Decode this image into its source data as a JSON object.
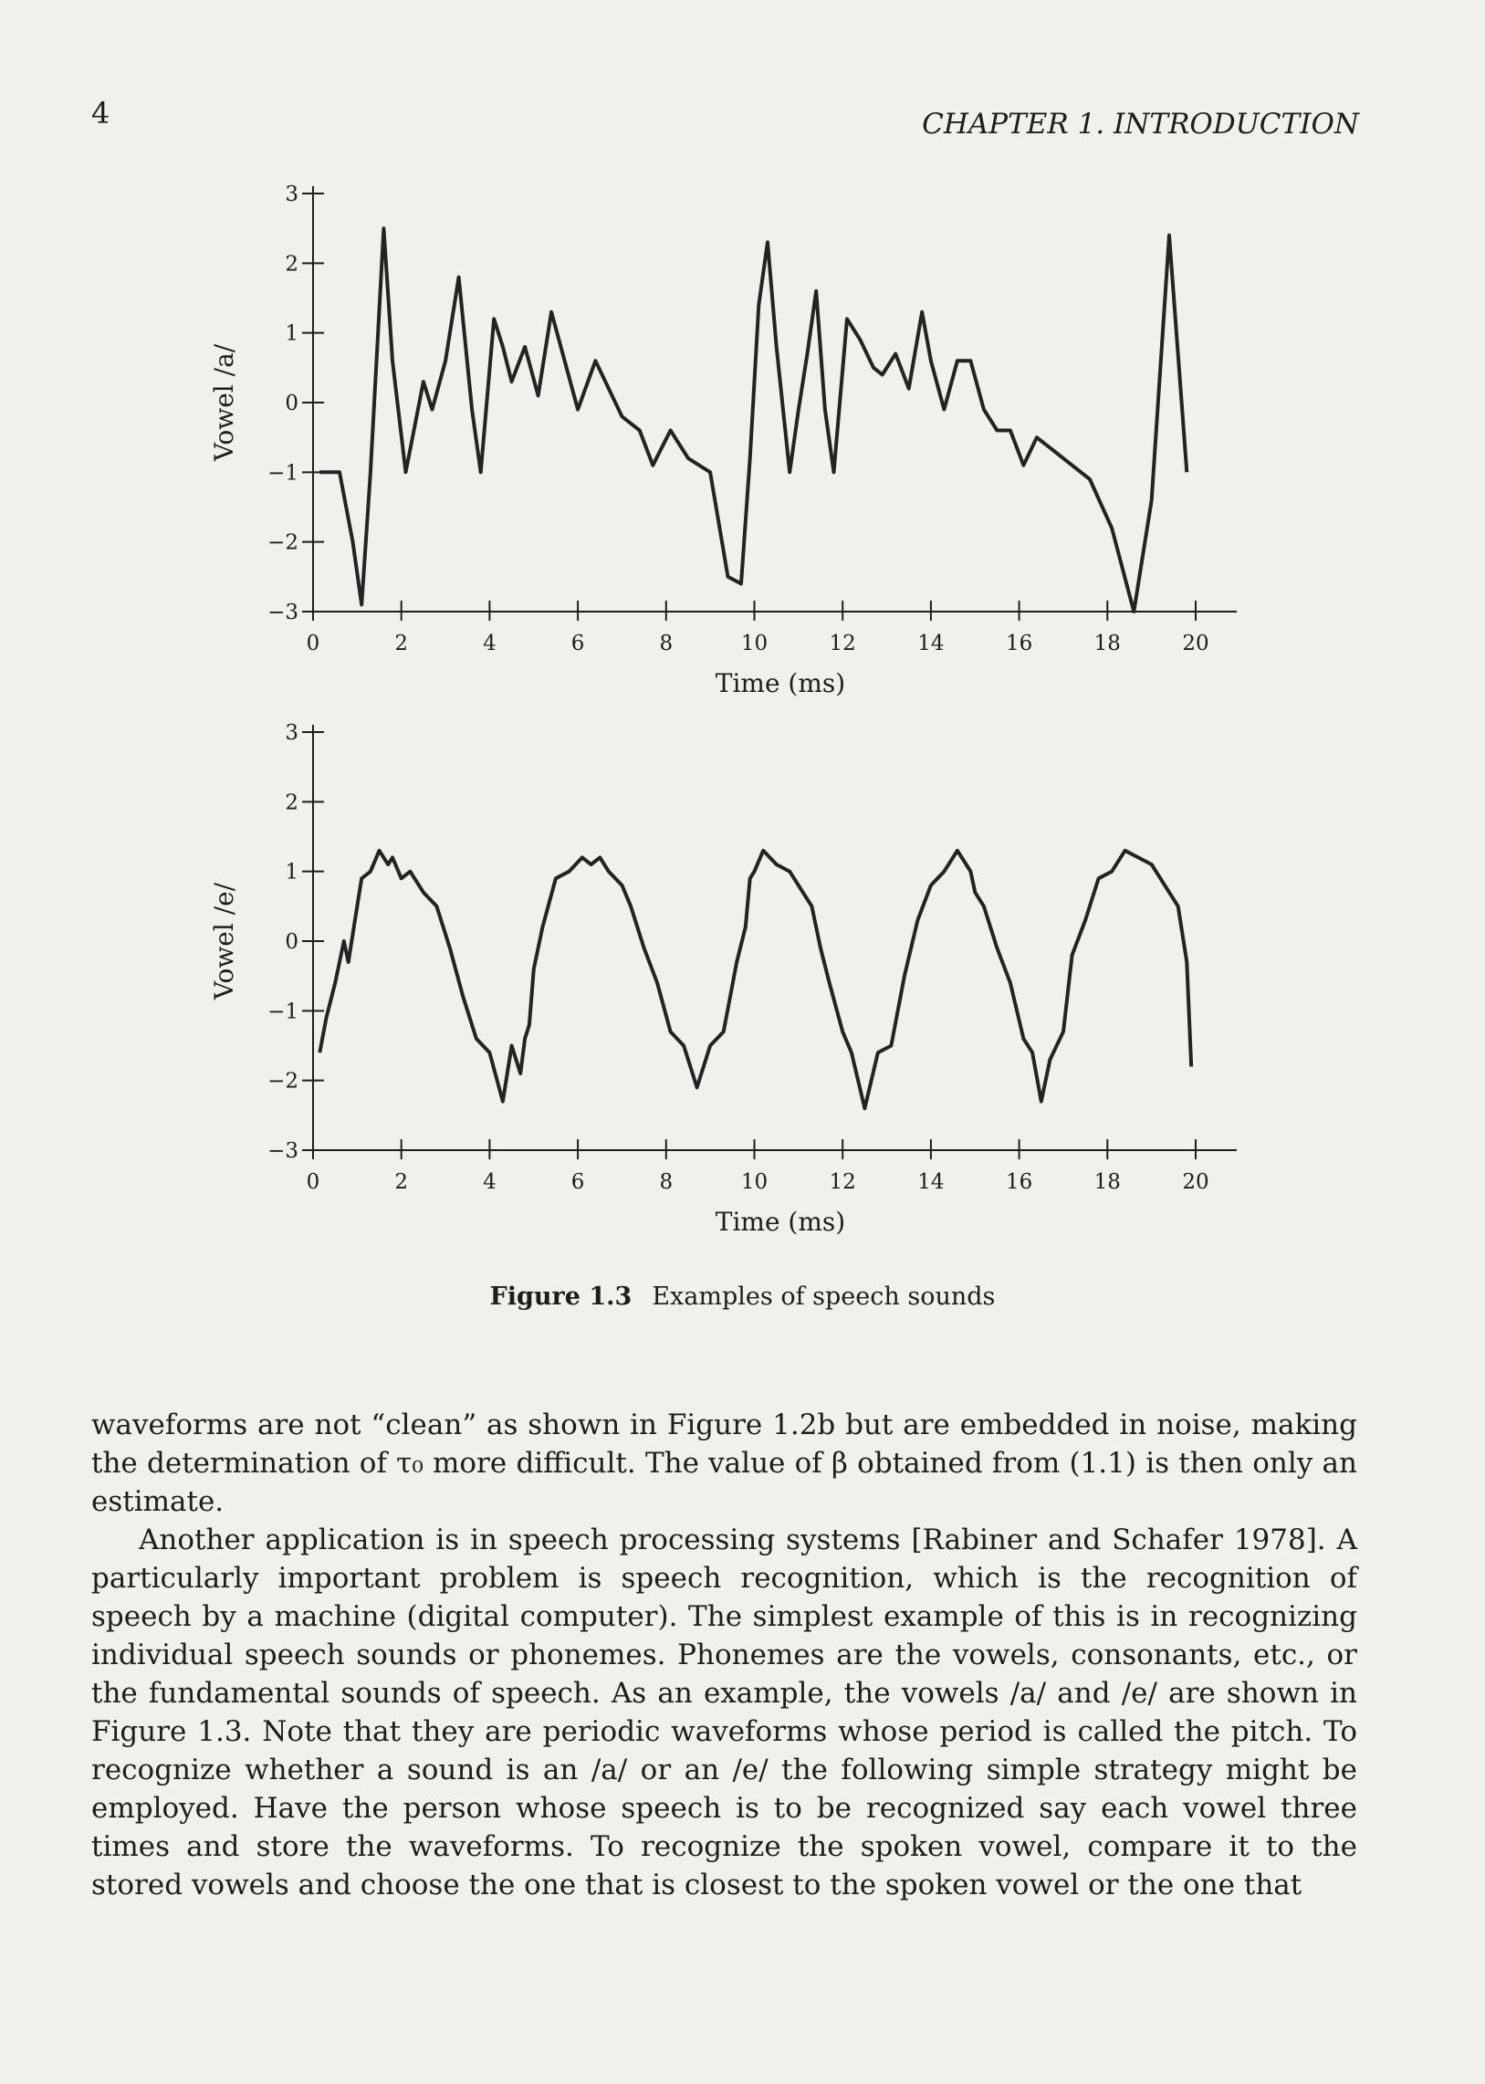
{
  "header": {
    "page_number": "4",
    "running_head": "CHAPTER 1. INTRODUCTION"
  },
  "figure": {
    "label": "Figure 1.3",
    "title": "Examples of speech sounds"
  },
  "chart_data": [
    {
      "type": "line",
      "ylabel": "Vowel /a/",
      "xlabel": "Time (ms)",
      "xlim": [
        0,
        20.5
      ],
      "ylim": [
        -3,
        3
      ],
      "xticks": [
        "0",
        "2",
        "4",
        "6",
        "8",
        "10",
        "12",
        "14",
        "16",
        "18",
        "20"
      ],
      "yticks": [
        "3",
        "2",
        "1",
        "0",
        "−1",
        "−2",
        "−3"
      ],
      "x": [
        0.15,
        0.6,
        0.9,
        1.1,
        1.3,
        1.6,
        1.8,
        2.1,
        2.5,
        2.7,
        3.0,
        3.3,
        3.6,
        3.8,
        4.1,
        4.3,
        4.5,
        4.8,
        5.1,
        5.4,
        5.7,
        6.0,
        6.4,
        6.7,
        7.0,
        7.4,
        7.7,
        8.1,
        8.5,
        9.0,
        9.4,
        9.7,
        9.9,
        10.1,
        10.3,
        10.5,
        10.8,
        11.0,
        11.2,
        11.4,
        11.6,
        11.8,
        12.1,
        12.4,
        12.7,
        12.9,
        13.2,
        13.5,
        13.8,
        14.0,
        14.3,
        14.6,
        14.9,
        15.2,
        15.5,
        15.8,
        16.1,
        16.4,
        16.8,
        17.2,
        17.6,
        18.1,
        18.6,
        19.0,
        19.4,
        19.8
      ],
      "y": [
        -1.0,
        -1.0,
        -2.0,
        -2.9,
        -1.0,
        2.5,
        0.6,
        -1.0,
        0.3,
        -0.1,
        0.6,
        1.8,
        -0.1,
        -1.0,
        1.2,
        0.8,
        0.3,
        0.8,
        0.1,
        1.3,
        0.6,
        -0.1,
        0.6,
        0.2,
        -0.2,
        -0.4,
        -0.9,
        -0.4,
        -0.8,
        -1.0,
        -2.5,
        -2.6,
        -0.8,
        1.4,
        2.3,
        0.8,
        -1.0,
        -0.1,
        0.7,
        1.6,
        -0.1,
        -1.0,
        1.2,
        0.9,
        0.5,
        0.4,
        0.7,
        0.2,
        1.3,
        0.6,
        -0.1,
        0.6,
        0.6,
        -0.1,
        -0.4,
        -0.4,
        -0.9,
        -0.5,
        -0.7,
        -0.9,
        -1.1,
        -1.8,
        -3.0,
        -1.4,
        2.4,
        -1.0
      ]
    },
    {
      "type": "line",
      "ylabel": "Vowel /e/",
      "xlabel": "Time (ms)",
      "xlim": [
        0,
        20.5
      ],
      "ylim": [
        -3,
        3
      ],
      "xticks": [
        "0",
        "2",
        "4",
        "6",
        "8",
        "10",
        "12",
        "14",
        "16",
        "18",
        "20"
      ],
      "yticks": [
        "3",
        "2",
        "1",
        "0",
        "−1",
        "−2",
        "−3"
      ],
      "x": [
        0.15,
        0.3,
        0.5,
        0.7,
        0.8,
        0.95,
        1.1,
        1.3,
        1.5,
        1.7,
        1.8,
        2.0,
        2.2,
        2.5,
        2.8,
        3.1,
        3.4,
        3.7,
        4.0,
        4.3,
        4.5,
        4.7,
        4.8,
        4.9,
        5.0,
        5.2,
        5.5,
        5.8,
        6.1,
        6.3,
        6.5,
        6.7,
        7.0,
        7.2,
        7.5,
        7.8,
        8.1,
        8.4,
        8.7,
        9.0,
        9.3,
        9.6,
        9.8,
        9.9,
        10.0,
        10.2,
        10.5,
        10.8,
        11.1,
        11.3,
        11.5,
        11.7,
        12.0,
        12.2,
        12.5,
        12.8,
        13.1,
        13.4,
        13.7,
        14.0,
        14.3,
        14.6,
        14.8,
        14.9,
        15.0,
        15.2,
        15.5,
        15.8,
        16.1,
        16.3,
        16.5,
        16.7,
        17.0,
        17.2,
        17.5,
        17.8,
        18.1,
        18.4,
        18.7,
        19.0,
        19.3,
        19.6,
        19.8,
        19.9
      ],
      "y": [
        -1.6,
        -1.1,
        -0.6,
        0.0,
        -0.3,
        0.3,
        0.9,
        1.0,
        1.3,
        1.1,
        1.2,
        0.9,
        1.0,
        0.7,
        0.5,
        -0.1,
        -0.8,
        -1.4,
        -1.6,
        -2.3,
        -1.5,
        -1.9,
        -1.4,
        -1.2,
        -0.4,
        0.2,
        0.9,
        1.0,
        1.2,
        1.1,
        1.2,
        1.0,
        0.8,
        0.5,
        -0.1,
        -0.6,
        -1.3,
        -1.5,
        -2.1,
        -1.5,
        -1.3,
        -0.3,
        0.2,
        0.9,
        1.0,
        1.3,
        1.1,
        1.0,
        0.7,
        0.5,
        -0.1,
        -0.6,
        -1.3,
        -1.6,
        -2.4,
        -1.6,
        -1.5,
        -0.5,
        0.3,
        0.8,
        1.0,
        1.3,
        1.1,
        1.0,
        0.7,
        0.5,
        -0.1,
        -0.6,
        -1.4,
        -1.6,
        -2.3,
        -1.7,
        -1.3,
        -0.2,
        0.3,
        0.9,
        1.0,
        1.3,
        1.2,
        1.1,
        0.8,
        0.5,
        -0.3,
        -1.8
      ]
    }
  ],
  "body": {
    "p1": "waveforms are not “clean” as shown in Figure 1.2b but are embedded in noise, making the determination of τ₀ more difficult. The value of β obtained from (1.1) is then only an estimate.",
    "p2": "Another application is in speech processing systems [Rabiner and Schafer 1978]. A particularly important problem is speech recognition, which is the recognition of speech by a machine (digital computer). The simplest example of this is in recognizing individual speech sounds or phonemes. Phonemes are the vowels, consonants, etc., or the fundamental sounds of speech. As an example, the vowels /a/ and /e/ are shown in Figure 1.3. Note that they are periodic waveforms whose period is called the pitch. To recognize whether a sound is an /a/ or an /e/ the following simple strategy might be employed. Have the person whose speech is to be recognized say each vowel three times and store the waveforms. To recognize the spoken vowel, compare it to the stored vowels and choose the one that is closest to the spoken vowel or the one that"
  }
}
